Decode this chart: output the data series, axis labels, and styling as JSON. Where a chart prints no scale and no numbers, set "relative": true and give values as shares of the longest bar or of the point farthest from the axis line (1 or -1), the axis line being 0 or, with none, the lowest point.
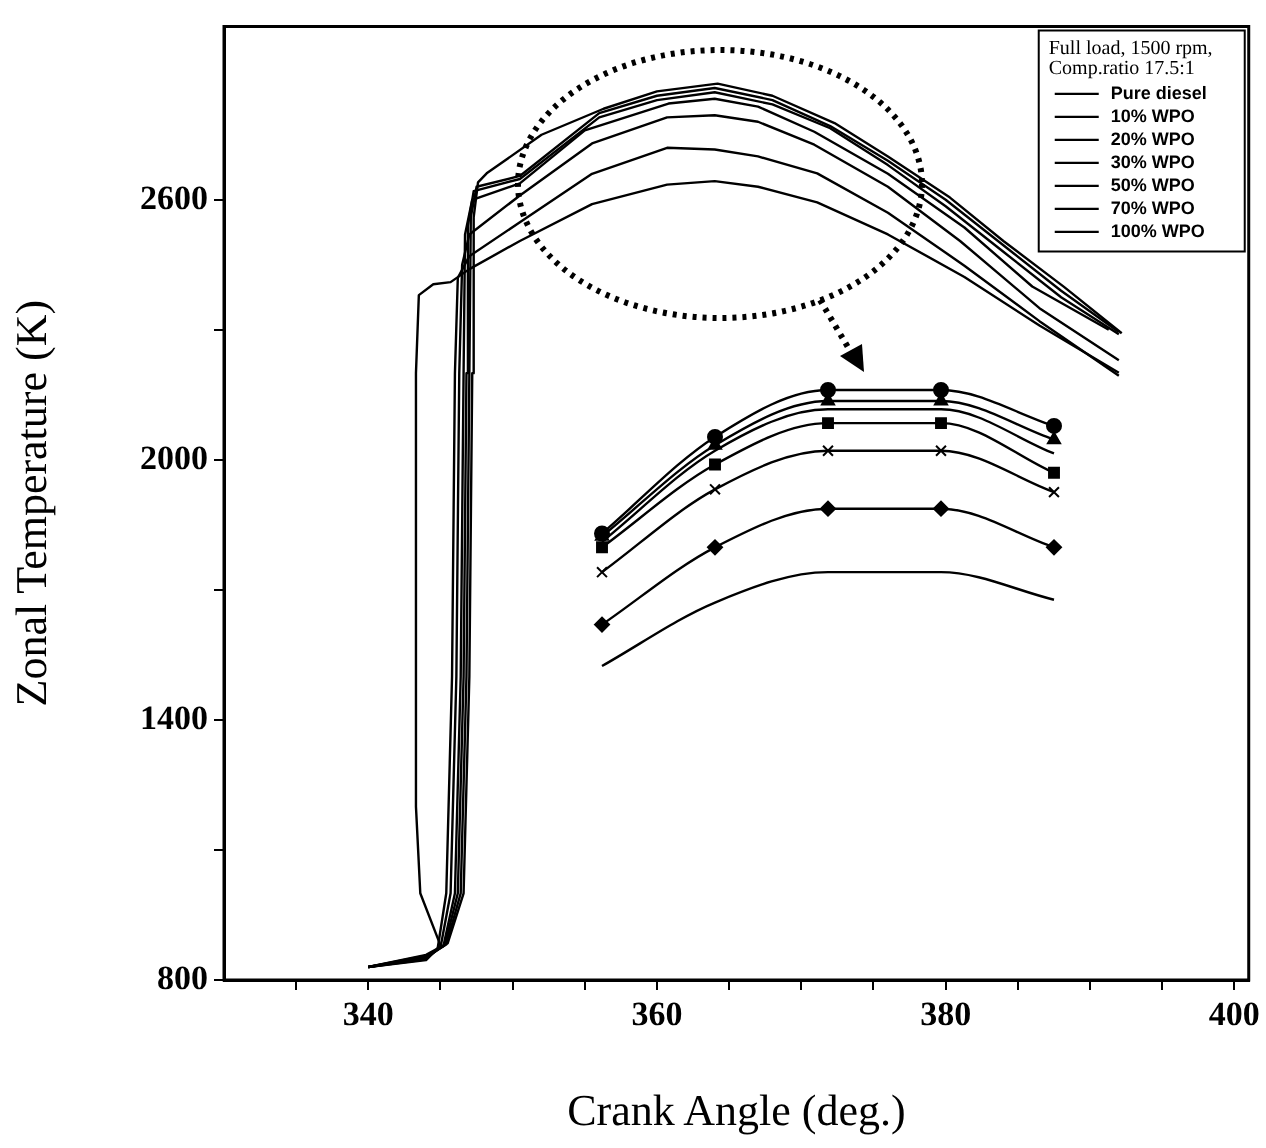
{
  "chart_data": [
    {
      "type": "line",
      "xlabel": "Crank Angle (deg.)",
      "ylabel": "Zonal Temperature (K)",
      "legend_title": "Full load, 1500 rpm, Comp.ratio 17.5:1",
      "legend": "top right",
      "grid": false,
      "line_style": "solid",
      "xlim": [
        330,
        401
      ],
      "xticks": [
        {
          "value": 335,
          "label": null
        },
        340,
        {
          "value": 345,
          "label": null
        },
        {
          "value": 350,
          "label": null
        },
        {
          "value": 355,
          "label": null
        },
        360,
        {
          "value": 365,
          "label": null
        },
        {
          "value": 370,
          "label": null
        },
        {
          "value": 375,
          "label": null
        },
        380,
        {
          "value": 385,
          "label": null
        },
        {
          "value": 390,
          "label": null
        },
        {
          "value": 395,
          "label": null
        },
        400
      ],
      "marker": "none",
      "ylim": [
        800,
        3000
      ],
      "yticks": [
        800,
        {
          "value": 1100,
          "label": null
        },
        1400,
        {
          "value": 1700,
          "label": null
        },
        2000,
        {
          "value": 2300,
          "label": null
        },
        2600
      ],
      "series": [
        {
          "name": "Pure diesel",
          "color": "#000000",
          "x": [
            340,
            344,
            345.5,
            346.6,
            347,
            347.2,
            347.3,
            347.6,
            348.2,
            352,
            356.3,
            360,
            364.2,
            368,
            372.3,
            376,
            380.3,
            384,
            388.2,
            392.2
          ],
          "values": [
            830,
            858,
            885,
            1000,
            1500,
            2200,
            2560,
            2640,
            2661,
            2750,
            2810,
            2850,
            2868,
            2840,
            2777,
            2700,
            2605,
            2505,
            2399,
            2292
          ]
        },
        {
          "name": "10% WPO",
          "color": "#000000",
          "x": [
            340,
            344,
            345.4,
            346.4,
            346.8,
            347,
            347.1,
            347.5,
            350.5,
            356,
            360,
            364,
            368,
            372,
            376,
            380,
            384,
            388,
            392
          ],
          "values": [
            830,
            856,
            882,
            1000,
            1500,
            2200,
            2560,
            2630,
            2655,
            2800,
            2840,
            2858,
            2830,
            2770,
            2690,
            2600,
            2495,
            2390,
            2295
          ]
        },
        {
          "name": "20% WPO",
          "color": "#000000",
          "x": [
            340,
            344,
            345.3,
            346.2,
            346.6,
            346.8,
            346.9,
            347.3,
            350.5,
            356,
            360,
            364,
            368,
            372,
            376,
            380,
            384,
            388,
            392
          ],
          "values": [
            830,
            854,
            880,
            1000,
            1500,
            2200,
            2540,
            2620,
            2648,
            2790,
            2830,
            2848,
            2820,
            2765,
            2680,
            2585,
            2480,
            2375,
            2290
          ]
        },
        {
          "name": "30% WPO",
          "color": "#000000",
          "x": [
            340,
            344,
            345.2,
            346,
            346.4,
            346.6,
            346.7,
            347.2,
            350.5,
            355,
            360.8,
            364,
            367,
            370.9,
            376,
            381.3,
            386,
            391.3
          ],
          "values": [
            830,
            852,
            878,
            1000,
            1500,
            2200,
            2520,
            2600,
            2638,
            2760,
            2822,
            2833,
            2815,
            2757,
            2660,
            2536,
            2400,
            2300
          ]
        },
        {
          "name": "50% WPO",
          "color": "#000000",
          "x": [
            340,
            344,
            345,
            345.7,
            346.1,
            346.3,
            346.5,
            347,
            350.5,
            355.5,
            360.7,
            364,
            367,
            370.9,
            376,
            381,
            386.5,
            392
          ],
          "values": [
            830,
            850,
            875,
            1000,
            1500,
            2200,
            2450,
            2520,
            2610,
            2730,
            2790,
            2795,
            2780,
            2727,
            2630,
            2505,
            2350,
            2230
          ]
        },
        {
          "name": "70% WPO",
          "color": "#000000",
          "x": [
            340,
            344,
            344.8,
            345.4,
            345.8,
            346,
            346.2,
            347,
            350.5,
            355.5,
            360.7,
            364,
            367,
            371.1,
            376,
            381.3,
            386.5,
            392
          ],
          "values": [
            830,
            848,
            872,
            1000,
            1500,
            2200,
            2420,
            2470,
            2548,
            2660,
            2720,
            2716,
            2700,
            2661,
            2570,
            2448,
            2320,
            2194
          ]
        },
        {
          "name": "100% WPO",
          "color": "#000000",
          "x": [
            340,
            344,
            345,
            343.6,
            343.3,
            343.3,
            343.5,
            344.5,
            345.7,
            347,
            350.5,
            355.5,
            360.7,
            364,
            367,
            371.1,
            376,
            381.3,
            386.5,
            392
          ],
          "values": [
            830,
            846,
            880,
            1000,
            1200,
            2200,
            2380,
            2405,
            2410,
            2440,
            2505,
            2590,
            2635,
            2643,
            2630,
            2594,
            2520,
            2422,
            2310,
            2201
          ]
        }
      ]
    },
    {
      "type": "line",
      "relative": true,
      "line_style": "solid",
      "categories": [
        null,
        null,
        null,
        null,
        null
      ],
      "series": [
        {
          "color": "#000000",
          "marker": "circle",
          "values": [
            0.48,
            0.83,
            1,
            1,
            0.87
          ]
        },
        {
          "color": "#000000",
          "marker": "triangle",
          "values": [
            0.47,
            0.8,
            0.96,
            0.96,
            0.82
          ]
        },
        {
          "color": "#000000",
          "marker": "none",
          "values": [
            0.45,
            0.78,
            0.93,
            0.93,
            0.77
          ]
        },
        {
          "color": "#000000",
          "marker": "square",
          "values": [
            0.43,
            0.73,
            0.88,
            0.88,
            0.7
          ]
        },
        {
          "color": "#000000",
          "marker": "cross",
          "values": [
            0.34,
            0.64,
            0.78,
            0.78,
            0.63
          ]
        },
        {
          "color": "#000000",
          "marker": "diamond",
          "values": [
            0.15,
            0.43,
            0.57,
            0.57,
            0.43
          ]
        },
        {
          "color": "#000000",
          "marker": "none",
          "values": [
            0,
            0.23,
            0.34,
            0.34,
            0.24
          ]
        }
      ]
    }
  ]
}
